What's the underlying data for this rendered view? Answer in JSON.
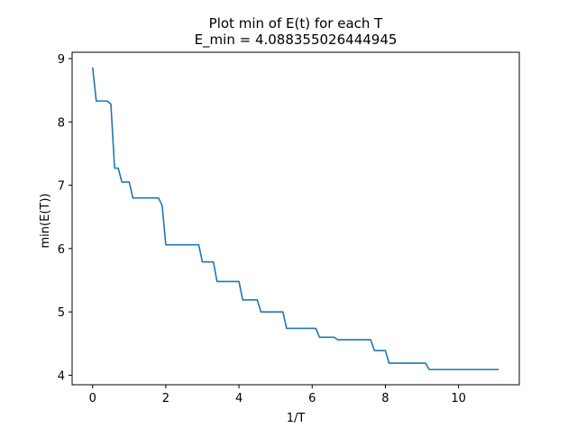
{
  "chart_data": {
    "type": "line",
    "title": "Plot min of E(t) for each T",
    "subtitle": "E_min = 4.088355026444945",
    "xlabel": "1/T",
    "ylabel": "min(E(T))",
    "xlim": [
      -0.56,
      11.66
    ],
    "ylim": [
      3.85,
      9.1
    ],
    "xticks": [
      0,
      2,
      4,
      6,
      8,
      10
    ],
    "yticks": [
      4,
      5,
      6,
      7,
      8,
      9
    ],
    "grid": false,
    "series": [
      {
        "color": "#1f77b4",
        "x": [
          0.0,
          0.1,
          0.4,
          0.5,
          0.6,
          0.7,
          0.8,
          1.0,
          1.1,
          1.8,
          1.9,
          2.0,
          2.9,
          3.0,
          3.3,
          3.4,
          4.0,
          4.1,
          4.5,
          4.6,
          5.2,
          5.3,
          6.1,
          6.2,
          6.6,
          6.7,
          7.6,
          7.7,
          8.0,
          8.1,
          9.1,
          9.2,
          11.1
        ],
        "y": [
          8.86,
          8.33,
          8.33,
          8.28,
          7.27,
          7.27,
          7.05,
          7.05,
          6.8,
          6.8,
          6.68,
          6.06,
          6.06,
          5.79,
          5.79,
          5.48,
          5.48,
          5.19,
          5.19,
          5.0,
          5.0,
          4.74,
          4.74,
          4.6,
          4.6,
          4.56,
          4.56,
          4.39,
          4.39,
          4.19,
          4.19,
          4.09,
          4.09
        ]
      }
    ]
  }
}
